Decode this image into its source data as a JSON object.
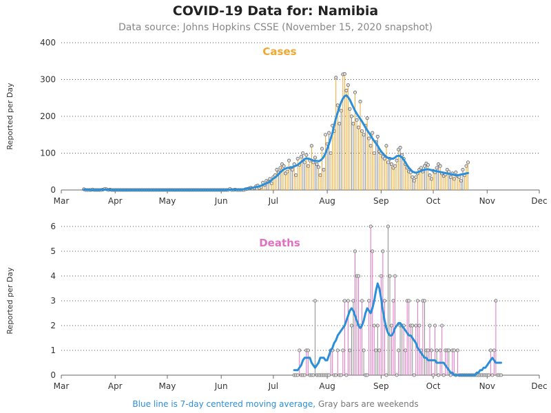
{
  "header": {
    "title": "COVID-19 Data for: Namibia",
    "subtitle": "Data source: Johns Hopkins CSSE (November 15, 2020 snapshot)"
  },
  "footnote": {
    "blue_text": "Blue line is 7-day centered moving average,",
    "gray_text": "Gray bars are weekends"
  },
  "colors": {
    "cases": "#f0a830",
    "deaths": "#e070c0",
    "weekend": "#8a8a8a",
    "moving_average": "#2b8ed8",
    "grid": "#555555"
  },
  "chart_data": [
    {
      "type": "bar",
      "panel": "cases",
      "title": "Cases",
      "ylabel": "Reported per Day",
      "xlabel": "",
      "ylim": [
        0,
        400
      ],
      "yticks": [
        0,
        100,
        200,
        300,
        400
      ],
      "xlim": [
        "2020-03-01",
        "2020-12-01"
      ],
      "xticks": [
        "Mar",
        "Apr",
        "May",
        "Jun",
        "Jul",
        "Aug",
        "Sep",
        "Oct",
        "Nov",
        "Dec"
      ],
      "grid": "horizontal dotted",
      "x_start_date": "2020-03-14",
      "values": [
        2,
        0,
        0,
        0,
        0,
        1,
        0,
        0,
        0,
        0,
        0,
        1,
        3,
        2,
        0,
        1,
        0,
        0,
        0,
        0,
        0,
        0,
        0,
        0,
        0,
        0,
        0,
        0,
        0,
        0,
        0,
        0,
        0,
        0,
        0,
        0,
        0,
        0,
        0,
        0,
        0,
        0,
        0,
        0,
        0,
        0,
        0,
        0,
        0,
        0,
        0,
        0,
        0,
        0,
        0,
        0,
        0,
        0,
        0,
        0,
        0,
        0,
        0,
        0,
        0,
        0,
        0,
        0,
        0,
        0,
        0,
        0,
        0,
        0,
        0,
        0,
        0,
        0,
        0,
        0,
        0,
        0,
        0,
        0,
        3,
        0,
        0,
        1,
        0,
        0,
        0,
        0,
        0,
        2,
        3,
        4,
        6,
        4,
        5,
        10,
        12,
        5,
        8,
        20,
        14,
        25,
        22,
        30,
        18,
        35,
        40,
        55,
        48,
        60,
        70,
        65,
        45,
        50,
        80,
        60,
        55,
        70,
        40,
        85,
        68,
        90,
        100,
        75,
        95,
        65,
        80,
        120,
        75,
        88,
        70,
        62,
        40,
        112,
        55,
        150,
        125,
        155,
        100,
        175,
        160,
        305,
        230,
        180,
        215,
        314,
        315,
        270,
        285,
        220,
        200,
        180,
        265,
        190,
        170,
        240,
        160,
        150,
        175,
        195,
        140,
        120,
        155,
        100,
        130,
        145,
        105,
        100,
        90,
        85,
        120,
        75,
        85,
        70,
        60,
        65,
        80,
        110,
        115,
        95,
        85,
        70,
        60,
        50,
        48,
        35,
        25,
        35,
        45,
        55,
        60,
        50,
        65,
        72,
        68,
        40,
        30,
        52,
        48,
        60,
        70,
        65,
        45,
        38,
        42,
        55,
        50,
        35,
        45,
        30,
        48,
        38,
        35,
        25,
        55,
        40,
        65,
        75
      ],
      "moving_average": [
        1,
        1,
        1,
        1,
        0,
        0,
        0,
        0,
        0,
        0,
        1,
        1,
        1,
        1,
        1,
        1,
        0,
        0,
        0,
        0,
        0,
        0,
        0,
        0,
        0,
        0,
        0,
        0,
        0,
        0,
        0,
        0,
        0,
        0,
        0,
        0,
        0,
        0,
        0,
        0,
        0,
        0,
        0,
        0,
        0,
        0,
        0,
        0,
        0,
        0,
        0,
        0,
        0,
        0,
        0,
        0,
        0,
        0,
        0,
        0,
        0,
        0,
        0,
        0,
        0,
        0,
        0,
        0,
        0,
        0,
        0,
        0,
        0,
        0,
        0,
        0,
        0,
        0,
        0,
        0,
        0,
        0,
        0,
        1,
        1,
        1,
        1,
        1,
        1,
        1,
        1,
        1,
        2,
        3,
        4,
        4,
        5,
        6,
        7,
        8,
        9,
        10,
        12,
        14,
        16,
        18,
        20,
        23,
        27,
        31,
        34,
        38,
        43,
        48,
        52,
        56,
        58,
        60,
        60,
        61,
        62,
        64,
        66,
        68,
        72,
        76,
        80,
        84,
        86,
        85,
        84,
        82,
        80,
        79,
        79,
        78,
        80,
        84,
        90,
        100,
        112,
        125,
        140,
        155,
        175,
        195,
        210,
        225,
        238,
        248,
        255,
        257,
        252,
        245,
        235,
        225,
        215,
        207,
        200,
        193,
        186,
        178,
        170,
        162,
        155,
        148,
        140,
        133,
        127,
        120,
        112,
        105,
        99,
        94,
        90,
        87,
        86,
        85,
        85,
        88,
        92,
        93,
        92,
        88,
        82,
        75,
        67,
        60,
        55,
        50,
        48,
        47,
        48,
        50,
        52,
        54,
        55,
        56,
        56,
        55,
        54,
        53,
        52,
        51,
        50,
        49,
        48,
        47,
        46,
        45,
        44,
        43,
        42,
        41,
        40,
        40,
        41,
        42,
        43,
        44,
        45,
        46
      ]
    },
    {
      "type": "bar",
      "panel": "deaths",
      "title": "Deaths",
      "ylabel": "Reported per Day",
      "xlabel": "",
      "ylim": [
        0,
        6
      ],
      "yticks": [
        0,
        1,
        2,
        3,
        4,
        5,
        6
      ],
      "xlim": [
        "2020-03-01",
        "2020-12-01"
      ],
      "xticks": [
        "Mar",
        "Apr",
        "May",
        "Jun",
        "Jul",
        "Aug",
        "Sep",
        "Oct",
        "Nov",
        "Dec"
      ],
      "grid": "horizontal dotted",
      "x_start_date": "2020-07-13",
      "values": [
        0,
        0,
        0,
        1,
        0,
        0,
        0,
        1,
        1,
        0,
        0,
        0,
        3,
        0,
        0,
        0,
        0,
        0,
        0,
        0,
        0,
        1,
        1,
        0,
        0,
        1,
        0,
        0,
        1,
        3,
        0,
        3,
        1,
        2,
        3,
        5,
        4,
        4,
        2,
        3,
        1,
        0,
        0,
        3,
        6,
        5,
        2,
        1,
        2,
        1,
        4,
        5,
        3,
        0,
        6,
        4,
        2,
        3,
        4,
        0,
        1,
        2,
        2,
        2,
        1,
        3,
        3,
        2,
        2,
        0,
        2,
        3,
        2,
        1,
        3,
        3,
        1,
        1,
        2,
        1,
        0,
        2,
        1,
        0,
        1,
        2,
        0,
        1,
        1,
        1,
        0,
        1,
        1,
        0,
        1,
        0,
        0,
        0,
        0,
        0,
        0,
        0,
        0,
        0,
        0,
        0,
        0,
        0,
        0,
        0,
        0,
        0,
        0,
        1,
        0,
        1,
        3,
        0,
        0,
        0
      ],
      "moving_average": [
        0.2,
        0.2,
        0.2,
        0.3,
        0.4,
        0.6,
        0.7,
        0.7,
        0.7,
        0.7,
        0.5,
        0.4,
        0.3,
        0.4,
        0.5,
        0.7,
        0.7,
        0.7,
        0.6,
        0.6,
        0.8,
        1.0,
        1.1,
        1.3,
        1.4,
        1.6,
        1.7,
        1.8,
        1.9,
        2.0,
        2.2,
        2.4,
        2.6,
        2.7,
        2.6,
        2.4,
        2.2,
        2.0,
        1.9,
        2.0,
        2.2,
        2.5,
        2.7,
        2.6,
        2.5,
        2.7,
        3.0,
        3.4,
        3.7,
        3.5,
        3.1,
        2.6,
        2.2,
        1.9,
        1.7,
        1.6,
        1.6,
        1.7,
        1.9,
        2.0,
        2.1,
        2.1,
        2.0,
        1.9,
        1.8,
        1.7,
        1.6,
        1.6,
        1.5,
        1.4,
        1.3,
        1.1,
        1.0,
        0.9,
        0.8,
        0.7,
        0.7,
        0.6,
        0.6,
        0.6,
        0.6,
        0.6,
        0.5,
        0.5,
        0.5,
        0.5,
        0.5,
        0.4,
        0.3,
        0.2,
        0.1,
        0.1,
        0.0,
        0.0,
        0.0,
        0.0,
        0.0,
        0.0,
        0.0,
        0.0,
        0.0,
        0.0,
        0.0,
        0.0,
        0.0,
        0.1,
        0.1,
        0.2,
        0.2,
        0.3,
        0.3,
        0.4,
        0.5,
        0.6,
        0.7,
        0.6,
        0.5,
        0.5,
        0.5,
        0.5
      ]
    }
  ]
}
